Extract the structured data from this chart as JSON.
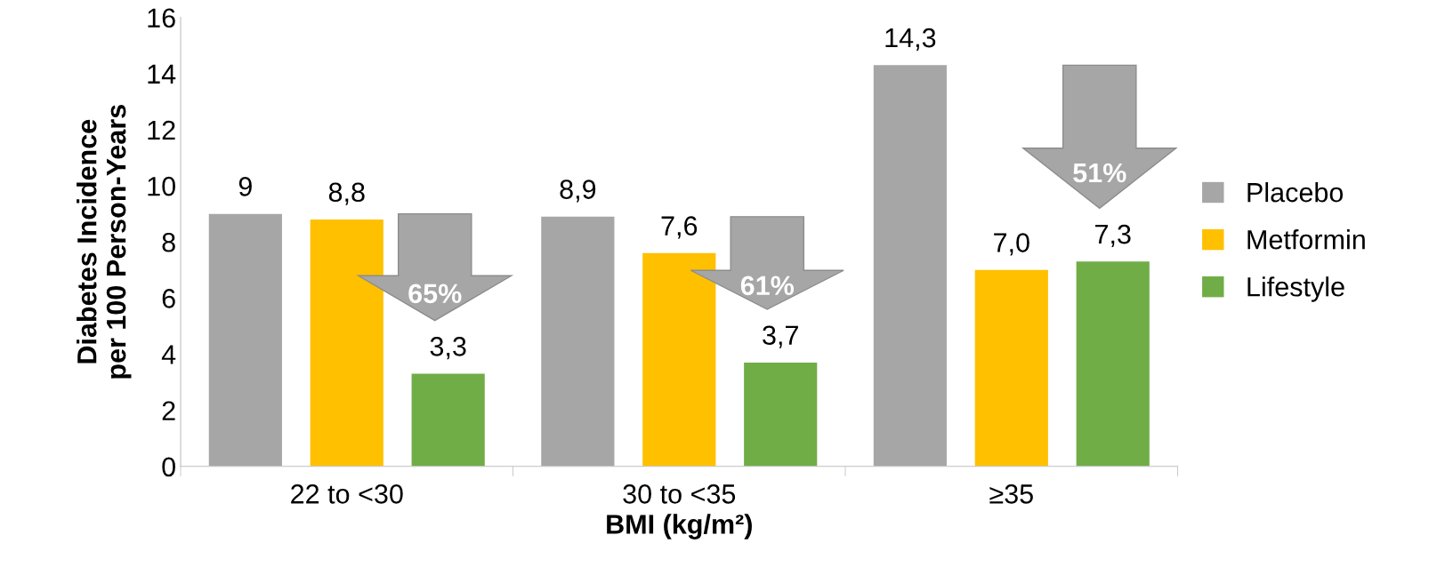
{
  "chart_data": {
    "type": "bar",
    "categories": [
      "22 to <30",
      "30 to <35",
      "≥35"
    ],
    "series": [
      {
        "name": "Placebo",
        "color": "#a6a6a6",
        "values": [
          9,
          8.9,
          14.3
        ],
        "value_labels": [
          "9",
          "8,9",
          "14,3"
        ]
      },
      {
        "name": "Metformin",
        "color": "#ffc000",
        "values": [
          8.8,
          7.6,
          7.0
        ],
        "value_labels": [
          "8,8",
          "7,6",
          "7,0"
        ]
      },
      {
        "name": "Lifestyle",
        "color": "#70ad47",
        "values": [
          3.3,
          3.7,
          7.3
        ],
        "value_labels": [
          "3,3",
          "3,7",
          "7,3"
        ]
      }
    ],
    "xlabel": "BMI (kg/m²)",
    "ylabel": "Diabetes Incidence\nper 100 Person-Years",
    "ylim": [
      0,
      16
    ],
    "yticks": [
      0,
      2,
      4,
      6,
      8,
      10,
      12,
      14,
      16
    ],
    "annotations": [
      "65%",
      "61%",
      "51%"
    ],
    "grid": false,
    "legend": "right"
  }
}
